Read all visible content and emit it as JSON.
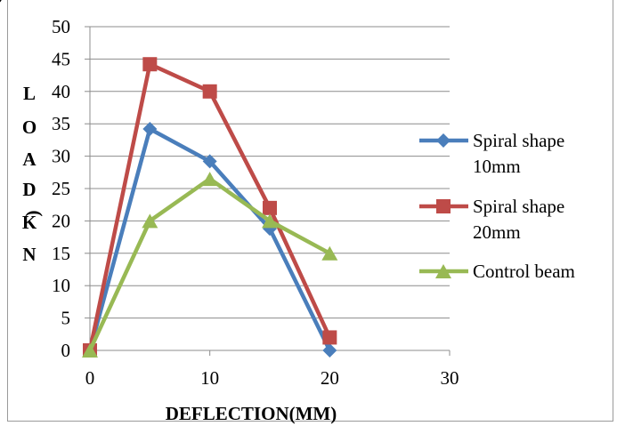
{
  "chart_data": {
    "type": "line",
    "title": "",
    "xlabel": "DEFLECTION(MM)",
    "ylabel": "LOAD(KN)",
    "xlim": [
      0,
      30
    ],
    "ylim": [
      0,
      50
    ],
    "x_ticks": [
      0,
      10,
      20,
      30
    ],
    "y_ticks": [
      0,
      5,
      10,
      15,
      20,
      25,
      30,
      35,
      40,
      45,
      50
    ],
    "grid": "horizontal",
    "legend_position": "right",
    "series": [
      {
        "name": "Spiral shape 10mm",
        "color": "#4a7ebb",
        "marker": "diamond",
        "x": [
          0,
          5,
          10,
          15,
          20
        ],
        "y": [
          0,
          34.2,
          29.2,
          18.8,
          0
        ]
      },
      {
        "name": "Spiral shape 20mm",
        "color": "#be4b48",
        "marker": "square",
        "x": [
          0,
          5,
          10,
          15,
          20
        ],
        "y": [
          0,
          44.2,
          40,
          22,
          2
        ]
      },
      {
        "name": "Control beam",
        "color": "#98b954",
        "marker": "triangle",
        "x": [
          0,
          5,
          10,
          15,
          20
        ],
        "y": [
          0,
          20,
          26.5,
          20,
          15
        ]
      }
    ]
  }
}
